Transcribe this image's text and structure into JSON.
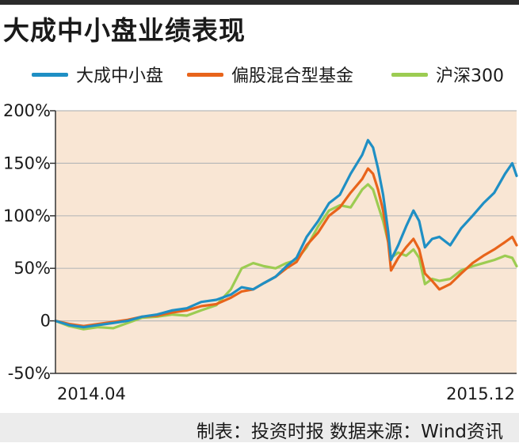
{
  "chart_data": {
    "type": "line",
    "title": "大成中小盘业绩表现",
    "xlabel": "",
    "ylabel": "",
    "x_range": [
      "2014.04",
      "2015.12"
    ],
    "x_tick_labels": [
      "2014.04",
      "2015.12"
    ],
    "ylim": [
      -50,
      200
    ],
    "y_ticks": [
      -50,
      0,
      50,
      100,
      150,
      200
    ],
    "y_tick_labels": [
      "-50%",
      "0",
      "50%",
      "100%",
      "150%",
      "200%"
    ],
    "grid": "horizontal",
    "legend_position": "top",
    "background": "#f9e6d4",
    "series": [
      {
        "name": "大成中小盘",
        "color": "#1f8fc4",
        "points": [
          [
            "2014-04-01",
            0
          ],
          [
            "2014-04-20",
            -4
          ],
          [
            "2014-05-10",
            -6
          ],
          [
            "2014-05-30",
            -4
          ],
          [
            "2014-06-20",
            -2
          ],
          [
            "2014-07-10",
            0
          ],
          [
            "2014-07-30",
            4
          ],
          [
            "2014-08-20",
            6
          ],
          [
            "2014-09-10",
            10
          ],
          [
            "2014-09-30",
            12
          ],
          [
            "2014-10-20",
            18
          ],
          [
            "2014-11-10",
            20
          ],
          [
            "2014-11-30",
            25
          ],
          [
            "2014-12-15",
            32
          ],
          [
            "2014-12-31",
            30
          ],
          [
            "2015-01-15",
            36
          ],
          [
            "2015-01-31",
            42
          ],
          [
            "2015-02-15",
            52
          ],
          [
            "2015-03-01",
            60
          ],
          [
            "2015-03-15",
            80
          ],
          [
            "2015-03-31",
            95
          ],
          [
            "2015-04-15",
            112
          ],
          [
            "2015-04-30",
            120
          ],
          [
            "2015-05-15",
            140
          ],
          [
            "2015-05-31",
            158
          ],
          [
            "2015-06-08",
            172
          ],
          [
            "2015-06-15",
            165
          ],
          [
            "2015-06-22",
            145
          ],
          [
            "2015-06-29",
            120
          ],
          [
            "2015-07-06",
            85
          ],
          [
            "2015-07-10",
            58
          ],
          [
            "2015-07-20",
            72
          ],
          [
            "2015-07-31",
            90
          ],
          [
            "2015-08-10",
            105
          ],
          [
            "2015-08-18",
            95
          ],
          [
            "2015-08-26",
            70
          ],
          [
            "2015-09-05",
            78
          ],
          [
            "2015-09-15",
            80
          ],
          [
            "2015-09-30",
            72
          ],
          [
            "2015-10-15",
            88
          ],
          [
            "2015-10-31",
            100
          ],
          [
            "2015-11-15",
            112
          ],
          [
            "2015-11-30",
            122
          ],
          [
            "2015-12-15",
            140
          ],
          [
            "2015-12-25",
            150
          ],
          [
            "2015-12-31",
            138
          ]
        ]
      },
      {
        "name": "偏股混合型基金",
        "color": "#e8641b",
        "points": [
          [
            "2014-04-01",
            0
          ],
          [
            "2014-04-20",
            -3
          ],
          [
            "2014-05-10",
            -5
          ],
          [
            "2014-05-30",
            -3
          ],
          [
            "2014-06-20",
            -1
          ],
          [
            "2014-07-10",
            1
          ],
          [
            "2014-07-30",
            4
          ],
          [
            "2014-08-20",
            5
          ],
          [
            "2014-09-10",
            8
          ],
          [
            "2014-09-30",
            10
          ],
          [
            "2014-10-20",
            14
          ],
          [
            "2014-11-10",
            16
          ],
          [
            "2014-11-30",
            22
          ],
          [
            "2014-12-15",
            28
          ],
          [
            "2014-12-31",
            30
          ],
          [
            "2015-01-15",
            36
          ],
          [
            "2015-01-31",
            42
          ],
          [
            "2015-02-15",
            50
          ],
          [
            "2015-03-01",
            56
          ],
          [
            "2015-03-15",
            72
          ],
          [
            "2015-03-31",
            84
          ],
          [
            "2015-04-15",
            100
          ],
          [
            "2015-04-30",
            108
          ],
          [
            "2015-05-15",
            122
          ],
          [
            "2015-05-31",
            135
          ],
          [
            "2015-06-08",
            145
          ],
          [
            "2015-06-15",
            140
          ],
          [
            "2015-06-22",
            125
          ],
          [
            "2015-06-29",
            105
          ],
          [
            "2015-07-06",
            75
          ],
          [
            "2015-07-10",
            48
          ],
          [
            "2015-07-20",
            60
          ],
          [
            "2015-07-31",
            70
          ],
          [
            "2015-08-10",
            78
          ],
          [
            "2015-08-18",
            68
          ],
          [
            "2015-08-26",
            45
          ],
          [
            "2015-09-05",
            38
          ],
          [
            "2015-09-15",
            30
          ],
          [
            "2015-09-30",
            35
          ],
          [
            "2015-10-15",
            45
          ],
          [
            "2015-10-31",
            55
          ],
          [
            "2015-11-15",
            62
          ],
          [
            "2015-11-30",
            68
          ],
          [
            "2015-12-15",
            75
          ],
          [
            "2015-12-25",
            80
          ],
          [
            "2015-12-31",
            72
          ]
        ]
      },
      {
        "name": "沪深300",
        "color": "#9ccc52",
        "points": [
          [
            "2014-04-01",
            0
          ],
          [
            "2014-04-20",
            -5
          ],
          [
            "2014-05-10",
            -8
          ],
          [
            "2014-05-30",
            -6
          ],
          [
            "2014-06-20",
            -7
          ],
          [
            "2014-07-10",
            -2
          ],
          [
            "2014-07-30",
            3
          ],
          [
            "2014-08-20",
            4
          ],
          [
            "2014-09-10",
            6
          ],
          [
            "2014-09-30",
            5
          ],
          [
            "2014-10-20",
            10
          ],
          [
            "2014-11-10",
            15
          ],
          [
            "2014-11-30",
            30
          ],
          [
            "2014-12-15",
            50
          ],
          [
            "2014-12-31",
            55
          ],
          [
            "2015-01-15",
            52
          ],
          [
            "2015-01-31",
            50
          ],
          [
            "2015-02-15",
            55
          ],
          [
            "2015-03-01",
            58
          ],
          [
            "2015-03-15",
            70
          ],
          [
            "2015-03-31",
            90
          ],
          [
            "2015-04-15",
            105
          ],
          [
            "2015-04-30",
            110
          ],
          [
            "2015-05-15",
            108
          ],
          [
            "2015-05-31",
            125
          ],
          [
            "2015-06-08",
            130
          ],
          [
            "2015-06-15",
            125
          ],
          [
            "2015-06-22",
            110
          ],
          [
            "2015-06-29",
            95
          ],
          [
            "2015-07-06",
            75
          ],
          [
            "2015-07-10",
            60
          ],
          [
            "2015-07-20",
            65
          ],
          [
            "2015-07-31",
            62
          ],
          [
            "2015-08-10",
            68
          ],
          [
            "2015-08-18",
            60
          ],
          [
            "2015-08-26",
            35
          ],
          [
            "2015-09-05",
            40
          ],
          [
            "2015-09-15",
            38
          ],
          [
            "2015-09-30",
            40
          ],
          [
            "2015-10-15",
            48
          ],
          [
            "2015-10-31",
            52
          ],
          [
            "2015-11-15",
            55
          ],
          [
            "2015-11-30",
            58
          ],
          [
            "2015-12-15",
            62
          ],
          [
            "2015-12-25",
            60
          ],
          [
            "2015-12-31",
            52
          ]
        ]
      }
    ]
  },
  "footer": "制表：投资时报    数据来源：Wind资讯"
}
